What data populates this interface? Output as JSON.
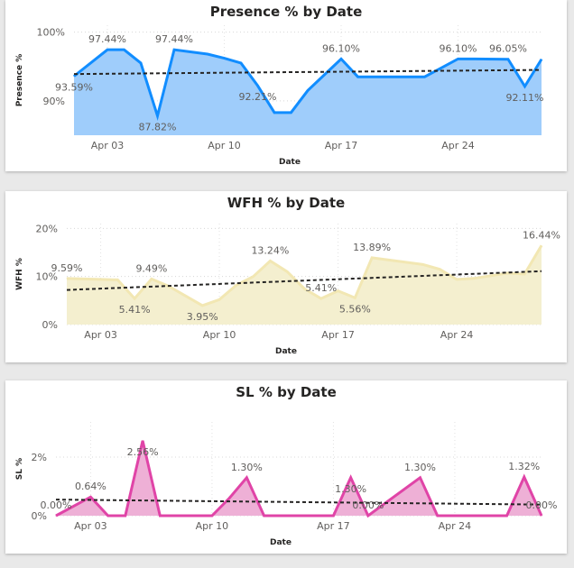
{
  "chart_data": [
    {
      "type": "area",
      "title": "Presence % by Date",
      "xlabel": "Date",
      "ylabel": "Presence %",
      "ylim": [
        85,
        101
      ],
      "x": [
        "2024-04-01",
        "2024-04-03",
        "2024-04-04",
        "2024-04-05",
        "2024-04-06",
        "2024-04-07",
        "2024-04-09",
        "2024-04-10",
        "2024-04-11",
        "2024-04-12",
        "2024-04-13",
        "2024-04-14",
        "2024-04-15",
        "2024-04-16",
        "2024-04-17",
        "2024-04-18",
        "2024-04-19",
        "2024-04-22",
        "2024-04-23",
        "2024-04-24",
        "2024-04-25",
        "2024-04-27",
        "2024-04-28",
        "2024-04-29"
      ],
      "values": [
        93.59,
        97.44,
        97.44,
        95.5,
        87.82,
        97.44,
        96.8,
        96.2,
        95.5,
        92.21,
        88.3,
        88.3,
        91.5,
        93.8,
        96.1,
        93.5,
        93.5,
        93.5,
        94.8,
        96.1,
        96.1,
        96.05,
        92.11,
        96.05
      ],
      "trend": [
        93.9,
        94.5
      ],
      "yticks": [
        "90%",
        "100%"
      ],
      "ytick_values": [
        90,
        100
      ],
      "xticks": [
        "Apr 03",
        "Apr 10",
        "Apr 17",
        "Apr 24"
      ],
      "xtick_dates": [
        "2024-04-03",
        "2024-04-10",
        "2024-04-17",
        "2024-04-24"
      ],
      "data_labels": [
        {
          "text": "93.59%",
          "index": 0,
          "pos": "below"
        },
        {
          "text": "97.44%",
          "index": 1,
          "pos": "above"
        },
        {
          "text": "87.82%",
          "index": 4,
          "pos": "below"
        },
        {
          "text": "97.44%",
          "index": 5,
          "pos": "above"
        },
        {
          "text": "92.21%",
          "index": 9,
          "pos": "below"
        },
        {
          "text": "96.10%",
          "index": 14,
          "pos": "above"
        },
        {
          "text": "96.10%",
          "index": 19,
          "pos": "above"
        },
        {
          "text": "96.05%",
          "index": 21,
          "pos": "above"
        },
        {
          "text": "92.11%",
          "index": 22,
          "pos": "below"
        }
      ],
      "color": "#118DFF",
      "fill": "#9fcdfb"
    },
    {
      "type": "area",
      "title": "WFH % by Date",
      "xlabel": "Date",
      "ylabel": "WFH %",
      "ylim": [
        0,
        21
      ],
      "x": [
        "2024-04-01",
        "2024-04-03",
        "2024-04-04",
        "2024-04-05",
        "2024-04-06",
        "2024-04-07",
        "2024-04-09",
        "2024-04-10",
        "2024-04-11",
        "2024-04-12",
        "2024-04-13",
        "2024-04-14",
        "2024-04-15",
        "2024-04-16",
        "2024-04-17",
        "2024-04-18",
        "2024-04-19",
        "2024-04-22",
        "2024-04-23",
        "2024-04-24",
        "2024-04-25",
        "2024-04-27",
        "2024-04-28",
        "2024-04-29"
      ],
      "values": [
        9.59,
        9.4,
        9.3,
        5.41,
        9.49,
        8.0,
        3.95,
        5.2,
        8.2,
        10.0,
        13.24,
        11.0,
        7.5,
        5.41,
        7.0,
        5.56,
        13.89,
        12.5,
        11.5,
        9.4,
        9.6,
        10.7,
        10.5,
        16.44
      ],
      "trend": [
        7.2,
        11.1
      ],
      "yticks": [
        "0%",
        "10%",
        "20%"
      ],
      "ytick_values": [
        0,
        10,
        20
      ],
      "xticks": [
        "Apr 03",
        "Apr 10",
        "Apr 17",
        "Apr 24"
      ],
      "xtick_dates": [
        "2024-04-03",
        "2024-04-10",
        "2024-04-17",
        "2024-04-24"
      ],
      "data_labels": [
        {
          "text": "9.59%",
          "index": 0,
          "pos": "above"
        },
        {
          "text": "5.41%",
          "index": 3,
          "pos": "below"
        },
        {
          "text": "9.49%",
          "index": 4,
          "pos": "above"
        },
        {
          "text": "3.95%",
          "index": 6,
          "pos": "below"
        },
        {
          "text": "13.24%",
          "index": 10,
          "pos": "above"
        },
        {
          "text": "5.41%",
          "index": 13,
          "pos": "above"
        },
        {
          "text": "5.56%",
          "index": 15,
          "pos": "below"
        },
        {
          "text": "13.89%",
          "index": 16,
          "pos": "above"
        },
        {
          "text": "16.44%",
          "index": 23,
          "pos": "above"
        }
      ],
      "color": "#F2E7B3",
      "fill": "#f4efcf"
    },
    {
      "type": "area",
      "title": "SL % by Date",
      "xlabel": "Date",
      "ylabel": "SL %",
      "ylim": [
        0,
        3.2
      ],
      "x": [
        "2024-04-01",
        "2024-04-03",
        "2024-04-04",
        "2024-04-05",
        "2024-04-06",
        "2024-04-07",
        "2024-04-09",
        "2024-04-10",
        "2024-04-11",
        "2024-04-12",
        "2024-04-13",
        "2024-04-14",
        "2024-04-15",
        "2024-04-16",
        "2024-04-17",
        "2024-04-18",
        "2024-04-19",
        "2024-04-22",
        "2024-04-23",
        "2024-04-24",
        "2024-04-25",
        "2024-04-27",
        "2024-04-28",
        "2024-04-29"
      ],
      "values": [
        0,
        0.64,
        0,
        0,
        2.56,
        0,
        0,
        0,
        0.6,
        1.3,
        0,
        0,
        0,
        0,
        0,
        1.3,
        0,
        1.3,
        0,
        0,
        0,
        0,
        1.32,
        0
      ],
      "trend": [
        0.55,
        0.38
      ],
      "yticks": [
        "0%",
        "2%"
      ],
      "ytick_values": [
        0,
        2
      ],
      "xticks": [
        "Apr 03",
        "Apr 10",
        "Apr 17",
        "Apr 24"
      ],
      "xtick_dates": [
        "2024-04-03",
        "2024-04-10",
        "2024-04-17",
        "2024-04-24"
      ],
      "data_labels": [
        {
          "text": "0.00%",
          "index": 0,
          "pos": "above"
        },
        {
          "text": "0.64%",
          "index": 1,
          "pos": "above"
        },
        {
          "text": "2.56%",
          "index": 4,
          "pos": "below"
        },
        {
          "text": "1.30%",
          "index": 9,
          "pos": "above"
        },
        {
          "text": "1.30%",
          "index": 15,
          "pos": "below"
        },
        {
          "text": "0.00%",
          "index": 16,
          "pos": "above"
        },
        {
          "text": "1.30%",
          "index": 17,
          "pos": "above"
        },
        {
          "text": "1.32%",
          "index": 22,
          "pos": "above"
        },
        {
          "text": "0.00%",
          "index": 23,
          "pos": "above"
        }
      ],
      "color": "#E044A7",
      "fill": "#eeb0d6"
    }
  ]
}
